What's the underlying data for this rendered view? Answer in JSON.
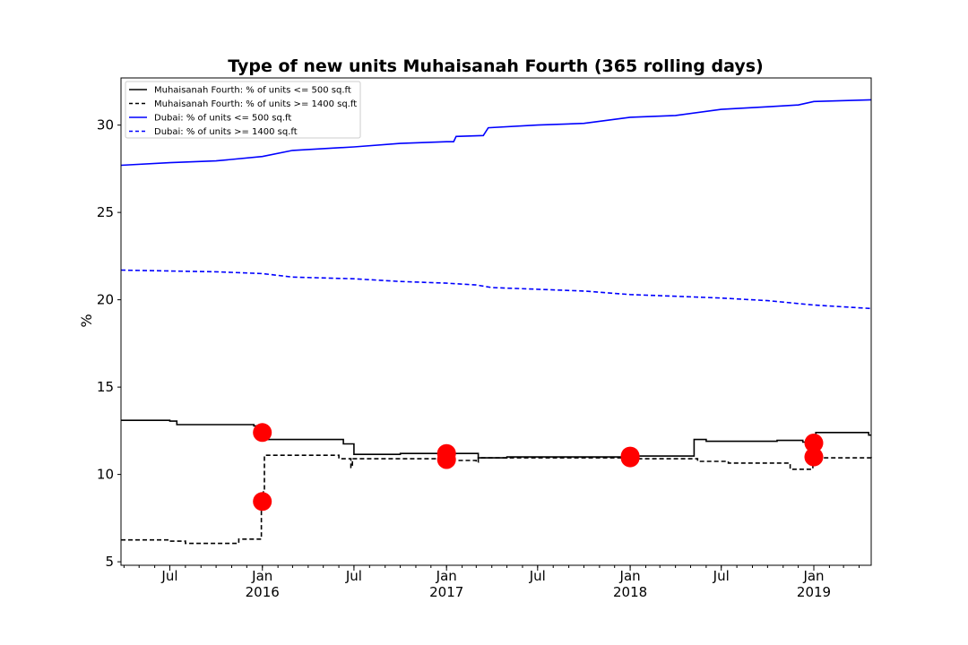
{
  "chart_data": {
    "type": "line",
    "title": "Type of new units Muhaisanah Fourth (365 rolling days)",
    "xlabel": "",
    "ylabel": "%",
    "ylim": [
      4.8,
      32.7
    ],
    "xlim": [
      "2015-03-26",
      "2019-04-25"
    ],
    "y_ticks": [
      5,
      10,
      15,
      20,
      25,
      30
    ],
    "x_ticks": [
      {
        "date": "2015-07-01",
        "label": "Jul",
        "sublabel": ""
      },
      {
        "date": "2016-01-01",
        "label": "Jan",
        "sublabel": "2016"
      },
      {
        "date": "2016-07-01",
        "label": "Jul",
        "sublabel": ""
      },
      {
        "date": "2017-01-01",
        "label": "Jan",
        "sublabel": "2017"
      },
      {
        "date": "2017-07-01",
        "label": "Jul",
        "sublabel": ""
      },
      {
        "date": "2018-01-01",
        "label": "Jan",
        "sublabel": "2018"
      },
      {
        "date": "2018-07-01",
        "label": "Jul",
        "sublabel": ""
      },
      {
        "date": "2019-01-01",
        "label": "Jan",
        "sublabel": "2019"
      }
    ],
    "legend_position": "top-left",
    "grid": false,
    "series": [
      {
        "name": "Muhaisanah Fourth: % of units <= 500 sq.ft",
        "color": "#000000",
        "style": "solid",
        "step": true,
        "points": [
          [
            "2015-03-26",
            13.1
          ],
          [
            "2015-07-01",
            13.05
          ],
          [
            "2015-07-15",
            12.85
          ],
          [
            "2015-12-15",
            12.78
          ],
          [
            "2016-01-01",
            12.5
          ],
          [
            "2016-01-05",
            12.0
          ],
          [
            "2016-06-10",
            11.75
          ],
          [
            "2016-07-01",
            11.15
          ],
          [
            "2016-10-01",
            11.2
          ],
          [
            "2017-01-01",
            11.2
          ],
          [
            "2017-03-05",
            10.95
          ],
          [
            "2017-05-01",
            11.0
          ],
          [
            "2018-01-01",
            11.05
          ],
          [
            "2018-05-05",
            11.05
          ],
          [
            "2018-05-08",
            12.0
          ],
          [
            "2018-06-01",
            11.9
          ],
          [
            "2018-10-20",
            11.95
          ],
          [
            "2018-12-10",
            11.85
          ],
          [
            "2019-01-05",
            12.4
          ],
          [
            "2019-04-15",
            12.4
          ],
          [
            "2019-04-20",
            12.25
          ],
          [
            "2019-04-25",
            12.25
          ]
        ]
      },
      {
        "name": "Muhaisanah Fourth: % of units >= 1400 sq.ft",
        "color": "#000000",
        "style": "dashed",
        "step": true,
        "points": [
          [
            "2015-03-26",
            6.25
          ],
          [
            "2015-07-01",
            6.18
          ],
          [
            "2015-08-01",
            6.05
          ],
          [
            "2015-11-15",
            6.3
          ],
          [
            "2015-12-30",
            8.0
          ],
          [
            "2016-01-03",
            9.0
          ],
          [
            "2016-01-05",
            11.1
          ],
          [
            "2016-06-01",
            10.9
          ],
          [
            "2016-06-25",
            10.4
          ],
          [
            "2016-06-28",
            10.9
          ],
          [
            "2016-09-01",
            10.9
          ],
          [
            "2017-01-01",
            10.8
          ],
          [
            "2017-03-01",
            10.7
          ],
          [
            "2017-03-05",
            10.95
          ],
          [
            "2017-07-01",
            10.95
          ],
          [
            "2018-01-01",
            10.9
          ],
          [
            "2018-04-01",
            10.9
          ],
          [
            "2018-05-15",
            10.75
          ],
          [
            "2018-07-15",
            10.65
          ],
          [
            "2018-11-15",
            10.3
          ],
          [
            "2018-12-30",
            10.95
          ],
          [
            "2019-04-25",
            10.85
          ]
        ]
      },
      {
        "name": "Dubai: % of units <= 500 sq.ft",
        "color": "#0000ff",
        "style": "solid",
        "step": false,
        "points": [
          [
            "2015-03-26",
            27.7
          ],
          [
            "2015-07-01",
            27.85
          ],
          [
            "2015-10-01",
            27.95
          ],
          [
            "2016-01-01",
            28.2
          ],
          [
            "2016-03-01",
            28.55
          ],
          [
            "2016-07-01",
            28.75
          ],
          [
            "2016-10-01",
            28.95
          ],
          [
            "2017-01-01",
            29.05
          ],
          [
            "2017-01-15",
            29.05
          ],
          [
            "2017-01-20",
            29.35
          ],
          [
            "2017-03-15",
            29.4
          ],
          [
            "2017-03-25",
            29.85
          ],
          [
            "2017-07-01",
            30.0
          ],
          [
            "2017-10-01",
            30.1
          ],
          [
            "2018-01-01",
            30.45
          ],
          [
            "2018-04-01",
            30.55
          ],
          [
            "2018-07-01",
            30.9
          ],
          [
            "2018-10-01",
            31.05
          ],
          [
            "2018-12-01",
            31.15
          ],
          [
            "2019-01-01",
            31.35
          ],
          [
            "2019-04-25",
            31.45
          ]
        ]
      },
      {
        "name": "Dubai: % of units >= 1400 sq.ft",
        "color": "#0000ff",
        "style": "dashed",
        "step": false,
        "points": [
          [
            "2015-03-26",
            21.7
          ],
          [
            "2015-07-01",
            21.65
          ],
          [
            "2015-10-01",
            21.6
          ],
          [
            "2016-01-01",
            21.5
          ],
          [
            "2016-03-01",
            21.3
          ],
          [
            "2016-07-01",
            21.2
          ],
          [
            "2016-10-01",
            21.05
          ],
          [
            "2017-01-01",
            20.95
          ],
          [
            "2017-03-01",
            20.85
          ],
          [
            "2017-04-01",
            20.7
          ],
          [
            "2017-07-01",
            20.6
          ],
          [
            "2017-10-01",
            20.5
          ],
          [
            "2018-01-01",
            20.3
          ],
          [
            "2018-04-01",
            20.2
          ],
          [
            "2018-07-01",
            20.1
          ],
          [
            "2018-10-01",
            19.95
          ],
          [
            "2019-01-01",
            19.7
          ],
          [
            "2019-04-25",
            19.5
          ]
        ]
      }
    ],
    "markers": {
      "color": "#ff0000",
      "points": [
        [
          "2016-01-01",
          12.4
        ],
        [
          "2016-01-01",
          8.45
        ],
        [
          "2017-01-01",
          11.2
        ],
        [
          "2017-01-01",
          10.85
        ],
        [
          "2018-01-01",
          11.05
        ],
        [
          "2018-01-01",
          10.95
        ],
        [
          "2019-01-01",
          11.8
        ],
        [
          "2019-01-01",
          11.0
        ]
      ]
    }
  }
}
